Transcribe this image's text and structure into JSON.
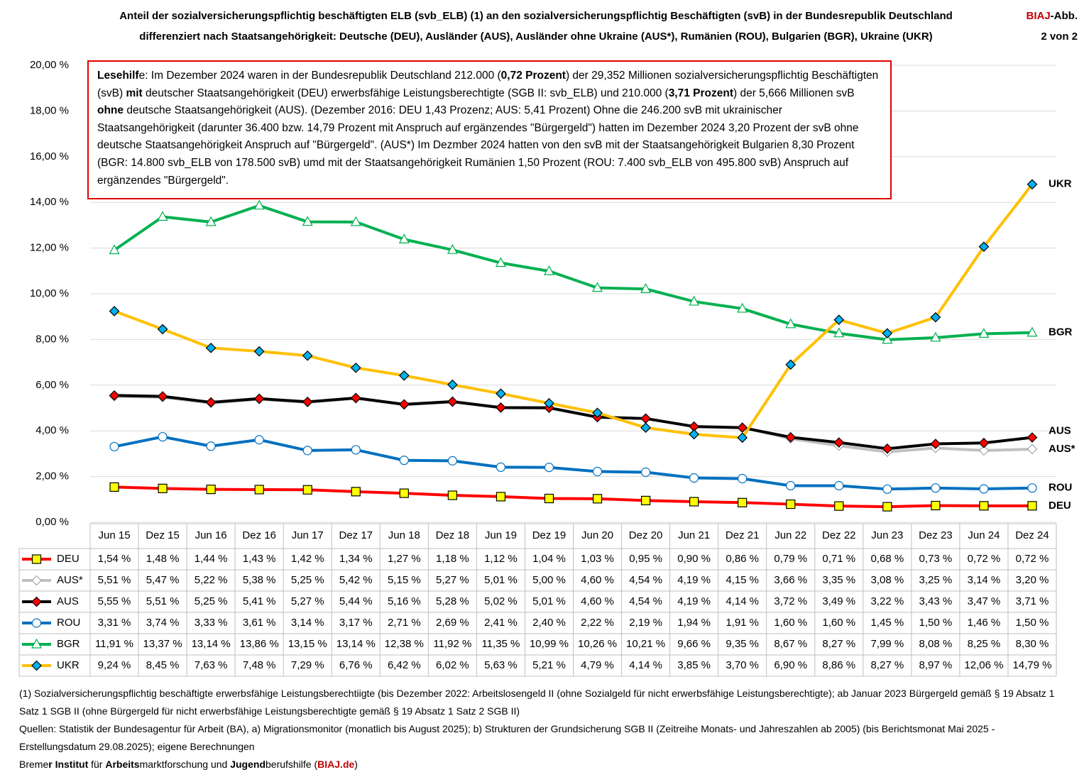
{
  "header": {
    "title_lines": [
      "Anteil der sozialversicherungspflichtig beschäftigten ELB (svb_ELB) (1) an den sozialversicherungspflichtig Beschäftigten (svB) in der Bundesrepublik Deutschland",
      "differenziert nach Staatsangehörigkeit: Deutsche (DEU), Ausländer (AUS), Ausländer ohne Ukraine (AUS*), Rumänien (ROU), Bulgarien (BGR), Ukraine (UKR)"
    ],
    "figure_label": [
      {
        "text": "BIAJ",
        "color": "#c00000"
      },
      {
        "text": "-Abb."
      }
    ],
    "figure_number": "2 von 2"
  },
  "note": {
    "parts": [
      {
        "text": "Lesehilf",
        "bold": true
      },
      {
        "text": "e: Im Dezember 2024 waren in der Bundesrepublik Deutschland 212.000 ("
      },
      {
        "text": "0,72 Prozent",
        "bold": true
      },
      {
        "text": ") der 29,352 Millionen sozialversicherungspflichtig Beschäftigten (svB) "
      },
      {
        "text": "mit",
        "bold": true
      },
      {
        "text": " deutscher Staatsangehörigkeit (DEU) erwerbsfähige Leistungsberechtigte (SGB II: svb_ELB) und 210.000 ("
      },
      {
        "text": "3,71 Prozent",
        "bold": true
      },
      {
        "text": ") der 5,666 Millionen svB "
      },
      {
        "text": "ohne",
        "bold": true
      },
      {
        "text": " deutsche Staatsangehörigkeit (AUS). (Dezember 2016: DEU 1,43 Prozenz; AUS: 5,41 Prozent) Ohne die 246.200 svB mit ukrainischer Staatsangehörigkeit (darunter 36.400 bzw. 14,79 Prozent mit Anspruch auf ergänzendes \"Bürgergeld\") hatten im Dezember 2024 3,20 Prozent der svB ohne deutsche Staatsangehörigkeit Anspruch auf \"Bürgergeld\". (AUS*) Im Dezmber 2024 hatten von den svB mit der Staatsangehörigkeit Bulgarien 8,30 Prozent (BGR: 14.800 svb_ELB von 178.500 svB) umd mit der Staatsangehörigkeit Rumänien 1,50 Prozent (ROU: 7.400 svb_ELB von 495.800 svB) Anspruch auf ergänzendes \"Bürgergeld\"."
      }
    ]
  },
  "chart_data": {
    "type": "line",
    "categories": [
      "Jun 15",
      "Dez 15",
      "Jun 16",
      "Dez 16",
      "Jun 17",
      "Dez 17",
      "Jun 18",
      "Dez 18",
      "Jun 19",
      "Dez 19",
      "Jun 20",
      "Dez 20",
      "Jun 21",
      "Dez 21",
      "Jun 22",
      "Dez 22",
      "Jun 23",
      "Dez 23",
      "Jun 24",
      "Dez 24"
    ],
    "ylim": [
      0,
      20
    ],
    "yticks": [
      {
        "value": 0,
        "label": "0,00 %"
      },
      {
        "value": 2,
        "label": "2,00 %"
      },
      {
        "value": 4,
        "label": "4,00 %"
      },
      {
        "value": 6,
        "label": "6,00 %"
      },
      {
        "value": 8,
        "label": "8,00 %"
      },
      {
        "value": 10,
        "label": "10,00 %"
      },
      {
        "value": 12,
        "label": "12,00 %"
      },
      {
        "value": 14,
        "label": "14,00 %"
      },
      {
        "value": 16,
        "label": "16,00 %"
      },
      {
        "value": 18,
        "label": "18,00 %"
      },
      {
        "value": 20,
        "label": "20,00 %"
      }
    ],
    "grid": true,
    "series": [
      {
        "name": "DEU",
        "color": "#ff0000",
        "marker": "square",
        "marker_fill": "#ffff00",
        "marker_stroke": "#000000",
        "values": [
          1.54,
          1.48,
          1.44,
          1.43,
          1.42,
          1.34,
          1.27,
          1.18,
          1.12,
          1.04,
          1.03,
          0.95,
          0.9,
          0.86,
          0.79,
          0.71,
          0.68,
          0.73,
          0.72,
          0.72
        ],
        "value_labels": [
          "1,54 %",
          "1,48 %",
          "1,44 %",
          "1,43 %",
          "1,42 %",
          "1,34 %",
          "1,27 %",
          "1,18 %",
          "1,12 %",
          "1,04 %",
          "1,03 %",
          "0,95 %",
          "0,90 %",
          "0,86 %",
          "0,79 %",
          "0,71 %",
          "0,68 %",
          "0,73 %",
          "0,72 %",
          "0,72 %"
        ]
      },
      {
        "name": "AUS*",
        "color": "#c0c0c0",
        "marker": "diamond",
        "marker_fill": "#ffffff",
        "marker_stroke": "#a6a6a6",
        "values": [
          5.51,
          5.47,
          5.22,
          5.38,
          5.25,
          5.42,
          5.15,
          5.27,
          5.01,
          5.0,
          4.6,
          4.54,
          4.19,
          4.15,
          3.66,
          3.35,
          3.08,
          3.25,
          3.14,
          3.2
        ],
        "value_labels": [
          "5,51 %",
          "5,47 %",
          "5,22 %",
          "5,38 %",
          "5,25 %",
          "5,42 %",
          "5,15 %",
          "5,27 %",
          "5,01 %",
          "5,00 %",
          "4,60 %",
          "4,54 %",
          "4,19 %",
          "4,15 %",
          "3,66 %",
          "3,35 %",
          "3,08 %",
          "3,25 %",
          "3,14 %",
          "3,20 %"
        ]
      },
      {
        "name": "AUS",
        "color": "#000000",
        "marker": "diamond",
        "marker_fill": "#ff0000",
        "marker_stroke": "#000000",
        "values": [
          5.55,
          5.51,
          5.25,
          5.41,
          5.27,
          5.44,
          5.16,
          5.28,
          5.02,
          5.01,
          4.6,
          4.54,
          4.19,
          4.14,
          3.72,
          3.49,
          3.22,
          3.43,
          3.47,
          3.71
        ],
        "value_labels": [
          "5,55 %",
          "5,51 %",
          "5,25 %",
          "5,41 %",
          "5,27 %",
          "5,44 %",
          "5,16 %",
          "5,28 %",
          "5,02 %",
          "5,01 %",
          "4,60 %",
          "4,54 %",
          "4,19 %",
          "4,14 %",
          "3,72 %",
          "3,49 %",
          "3,22 %",
          "3,43 %",
          "3,47 %",
          "3,71 %"
        ]
      },
      {
        "name": "ROU",
        "color": "#0070c0",
        "marker": "circle",
        "marker_fill": "#ffffff",
        "marker_stroke": "#0070c0",
        "values": [
          3.31,
          3.74,
          3.33,
          3.61,
          3.14,
          3.17,
          2.71,
          2.69,
          2.41,
          2.4,
          2.22,
          2.19,
          1.94,
          1.91,
          1.6,
          1.6,
          1.45,
          1.5,
          1.46,
          1.5
        ],
        "value_labels": [
          "3,31 %",
          "3,74 %",
          "3,33 %",
          "3,61 %",
          "3,14 %",
          "3,17 %",
          "2,71 %",
          "2,69 %",
          "2,41 %",
          "2,40 %",
          "2,22 %",
          "2,19 %",
          "1,94 %",
          "1,91 %",
          "1,60 %",
          "1,60 %",
          "1,45 %",
          "1,50 %",
          "1,46 %",
          "1,50 %"
        ]
      },
      {
        "name": "BGR",
        "color": "#00b050",
        "marker": "triangle",
        "marker_fill": "#ffffff",
        "marker_stroke": "#00b050",
        "values": [
          11.91,
          13.37,
          13.14,
          13.86,
          13.15,
          13.14,
          12.38,
          11.92,
          11.35,
          10.99,
          10.26,
          10.21,
          9.66,
          9.35,
          8.67,
          8.27,
          7.99,
          8.08,
          8.25,
          8.3
        ],
        "value_labels": [
          "11,91 %",
          "13,37 %",
          "13,14 %",
          "13,86 %",
          "13,15 %",
          "13,14 %",
          "12,38 %",
          "11,92 %",
          "11,35 %",
          "10,99 %",
          "10,26 %",
          "10,21 %",
          "9,66 %",
          "9,35 %",
          "8,67 %",
          "8,27 %",
          "7,99 %",
          "8,08 %",
          "8,25 %",
          "8,30 %"
        ]
      },
      {
        "name": "UKR",
        "color": "#ffc000",
        "marker": "diamond",
        "marker_fill": "#00b0f0",
        "marker_stroke": "#000000",
        "values": [
          9.24,
          8.45,
          7.63,
          7.48,
          7.29,
          6.76,
          6.42,
          6.02,
          5.63,
          5.21,
          4.79,
          4.14,
          3.85,
          3.7,
          6.9,
          8.86,
          8.27,
          8.97,
          12.06,
          14.79
        ],
        "value_labels": [
          "9,24 %",
          "8,45 %",
          "7,63 %",
          "7,48 %",
          "7,29 %",
          "6,76 %",
          "6,42 %",
          "6,02 %",
          "5,63 %",
          "5,21 %",
          "4,79 %",
          "4,14 %",
          "3,85 %",
          "3,70 %",
          "6,90 %",
          "8,86 %",
          "8,27 %",
          "8,97 %",
          "12,06 %",
          "14,79 %"
        ]
      }
    ]
  },
  "footnotes": [
    {
      "parts": [
        {
          "text": "(1) Sozialversicherungspflichtig beschäftigte erwerbsfähige Leistungsberechtiigte (bis Dezember 2022: Arbeitslosengeld II (ohne Sozialgeld für nicht erwerbsfähige Leistungsberechtigte); ab Januar 2023  Bürgergeld gemäß § 19 Absatz 1 Satz 1 SGB II (ohne Bürgergeld für nicht erwerbsfähige Leistungsberechtigte gemäß § 19 Absatz 1 Satz 2 SGB II)"
        }
      ]
    },
    {
      "parts": [
        {
          "text": "Quellen: Statistik der Bundesagentur für Arbeit (BA),  a) Migrationsmonitor (monatlich bis August 2025); b) Strukturen der Grundsicherung SGB II (Zeitreihe Monats- und Jahreszahlen ab 2005) (bis Berichtsmonat Mai 2025 - Erstellungsdatum 29.08.2025); eigene Berechnungen"
        }
      ]
    },
    {
      "parts": [
        {
          "text": "Breme"
        },
        {
          "text": "r Institut",
          "bold": true
        },
        {
          "text": " für "
        },
        {
          "text": "Arbeits",
          "bold": true
        },
        {
          "text": "marktforschung und "
        },
        {
          "text": "Jugend",
          "bold": true
        },
        {
          "text": "berufshilfe ("
        },
        {
          "text": "BIAJ.de",
          "bold": true,
          "color": "#c00000"
        },
        {
          "text": ")"
        }
      ]
    }
  ]
}
